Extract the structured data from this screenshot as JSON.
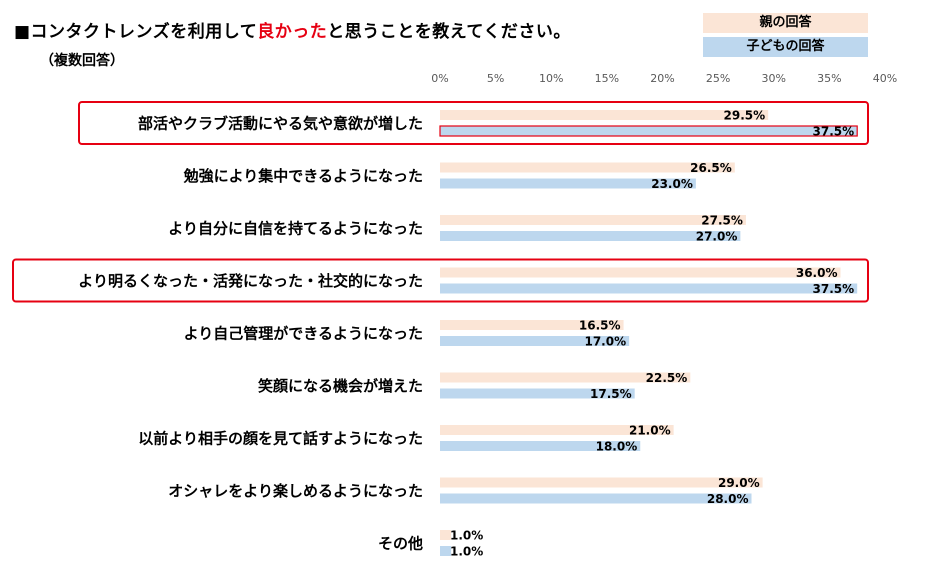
{
  "header": {
    "title_prefix": "■コンタクトレンズを利用して",
    "title_highlight": "良かった",
    "title_suffix": "と思うことを教えてください。",
    "subtitle": "（複数回答）"
  },
  "colors": {
    "parent": "#fbe5d6",
    "child": "#bdd7ee",
    "highlight": "#e60012"
  },
  "chart_data": {
    "type": "bar",
    "orientation": "horizontal",
    "title": "コンタクトレンズを利用して良かったと思うことを教えてください。（複数回答）",
    "categories": [
      "部活やクラブ活動にやる気や意欲が増した",
      "勉強により集中できるようになった",
      "より自分に自信を持てるようになった",
      "より明るくなった・活発になった・社交的になった",
      "より自己管理ができるようになった",
      "笑顔になる機会が増えた",
      "以前より相手の顔を見て話すようになった",
      "オシャレをより楽しめるようになった",
      "その他"
    ],
    "series": [
      {
        "name": "親の回答",
        "values": [
          29.5,
          26.5,
          27.5,
          36.0,
          16.5,
          22.5,
          21.0,
          29.0,
          1.0
        ]
      },
      {
        "name": "子どもの回答",
        "values": [
          37.5,
          23.0,
          27.0,
          37.5,
          17.0,
          17.5,
          18.0,
          28.0,
          1.0
        ]
      }
    ],
    "value_labels": [
      [
        "29.5%",
        "26.5%",
        "27.5%",
        "36.0%",
        "16.5%",
        "22.5%",
        "21.0%",
        "29.0%",
        "1.0%"
      ],
      [
        "37.5%",
        "23.0%",
        "27.0%",
        "37.5%",
        "17.0%",
        "17.5%",
        "18.0%",
        "28.0%",
        "1.0%"
      ]
    ],
    "xlim": [
      0,
      40
    ],
    "ticks": [
      0,
      5,
      10,
      15,
      20,
      25,
      30,
      35,
      40
    ],
    "tick_labels": [
      "0%",
      "5%",
      "10%",
      "15%",
      "20%",
      "25%",
      "30%",
      "35%",
      "40%"
    ],
    "highlighted_categories": [
      0,
      3
    ],
    "legend": [
      "親の回答",
      "子どもの回答"
    ],
    "legend_position": "top-right"
  }
}
